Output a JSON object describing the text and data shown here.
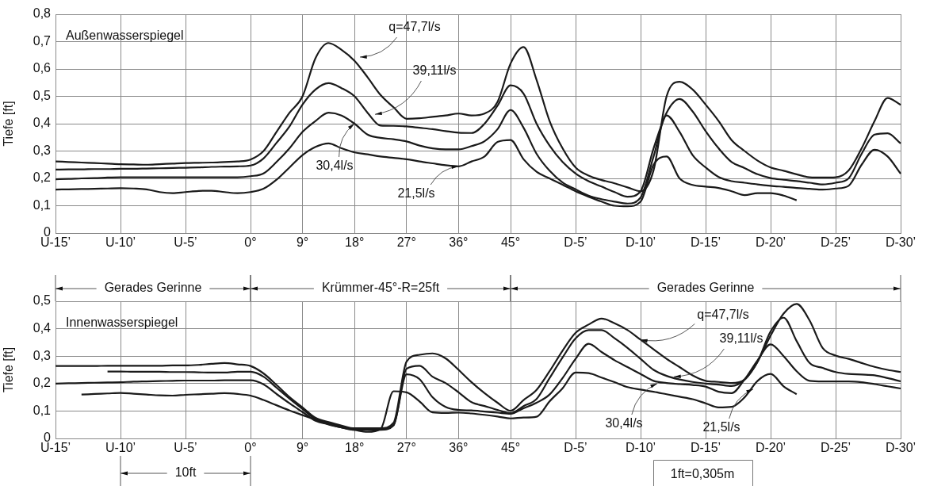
{
  "chart_data": [
    {
      "type": "line",
      "ylabel": "Tiefe [ft]",
      "grid": true,
      "marker": "none",
      "categories": [
        "U-15’",
        null,
        null,
        null,
        null,
        "U-10’",
        null,
        null,
        null,
        null,
        "U-5’",
        null,
        null,
        null,
        null,
        "0°",
        null,
        null,
        null,
        "9°",
        null,
        null,
        null,
        "18°",
        null,
        null,
        null,
        "27°",
        null,
        null,
        null,
        "36°",
        null,
        null,
        null,
        "45°",
        null,
        null,
        null,
        null,
        "D-5’",
        null,
        null,
        null,
        null,
        "D-10’",
        null,
        null,
        null,
        null,
        "D-15’",
        null,
        null,
        null,
        null,
        "D-20’",
        null,
        null,
        null,
        null,
        "D-25’",
        null,
        null,
        null,
        null,
        "D-30’"
      ],
      "ylim": [
        0,
        0.8
      ],
      "yticks": [
        0,
        {
          "value": 0.1,
          "label": "0,1"
        },
        {
          "value": 0.2,
          "label": "0,2"
        },
        {
          "value": 0.3,
          "label": "0,3"
        },
        {
          "value": 0.4,
          "label": "0,4"
        },
        {
          "value": 0.5,
          "label": "0,5"
        },
        {
          "value": 0.6,
          "label": "0,6"
        },
        {
          "value": 0.7,
          "label": "0,7"
        },
        {
          "value": 0.8,
          "label": "0,8"
        }
      ],
      "series": [
        {
          "color": "#1a1a1a",
          "values": [
            0.262,
            0.26,
            0.258,
            0.256,
            0.254,
            0.252,
            0.251,
            0.25,
            0.252,
            0.254,
            0.256,
            0.257,
            0.258,
            0.26,
            0.262,
            0.269,
            0.3,
            0.37,
            0.44,
            0.5,
            0.64,
            0.695,
            0.67,
            0.63,
            0.57,
            0.505,
            0.46,
            0.418,
            0.42,
            0.425,
            0.43,
            0.437,
            0.43,
            0.437,
            0.48,
            0.62,
            0.68,
            0.56,
            0.41,
            0.31,
            0.24,
            0.21,
            0.194,
            0.182,
            0.167,
            0.153,
            0.23,
            0.5,
            0.553,
            0.525,
            0.47,
            0.41,
            0.34,
            0.3,
            0.265,
            0.24,
            0.228,
            0.215,
            0.204,
            0.203,
            0.204,
            0.229,
            0.31,
            0.41,
            0.494,
            0.469
          ]
        },
        {
          "color": "#1a1a1a",
          "values": [
            0.232,
            0.233,
            0.233,
            0.234,
            0.234,
            0.235,
            0.235,
            0.236,
            0.237,
            0.238,
            0.239,
            0.24,
            0.242,
            0.243,
            0.244,
            0.247,
            0.273,
            0.33,
            0.39,
            0.47,
            0.525,
            0.548,
            0.53,
            0.5,
            0.44,
            0.393,
            0.392,
            0.39,
            0.385,
            0.38,
            0.373,
            0.367,
            0.366,
            0.4,
            0.466,
            0.54,
            0.51,
            0.4,
            0.32,
            0.26,
            0.218,
            0.19,
            0.17,
            0.15,
            0.133,
            0.153,
            0.31,
            0.44,
            0.49,
            0.445,
            0.373,
            0.31,
            0.26,
            0.238,
            0.215,
            0.201,
            0.195,
            0.19,
            0.184,
            0.178,
            0.184,
            0.2,
            0.29,
            0.36,
            0.365,
            0.328
          ]
        },
        {
          "color": "#1a1a1a",
          "values": [
            0.197,
            0.198,
            0.2,
            0.201,
            0.203,
            0.204,
            0.204,
            0.204,
            0.204,
            0.204,
            0.204,
            0.204,
            0.204,
            0.204,
            0.204,
            0.208,
            0.218,
            0.26,
            0.31,
            0.37,
            0.41,
            0.44,
            0.43,
            0.4,
            0.36,
            0.348,
            0.343,
            0.335,
            0.32,
            0.31,
            0.306,
            0.306,
            0.318,
            0.336,
            0.38,
            0.45,
            0.385,
            0.29,
            0.228,
            0.185,
            0.16,
            0.137,
            0.124,
            0.115,
            0.108,
            0.13,
            0.28,
            0.43,
            0.37,
            0.285,
            0.24,
            0.205,
            0.19,
            0.184,
            0.178,
            0.173,
            0.169,
            0.165,
            0.162,
            0.159,
            0.163,
            0.173,
            0.25,
            0.305,
            0.28,
            0.217
          ]
        },
        {
          "color": "#1a1a1a",
          "values": [
            0.159,
            0.16,
            0.161,
            0.162,
            0.163,
            0.164,
            0.163,
            0.16,
            0.15,
            0.146,
            0.15,
            0.154,
            0.155,
            0.15,
            0.146,
            0.15,
            0.162,
            0.195,
            0.24,
            0.285,
            0.315,
            0.328,
            0.31,
            0.295,
            0.288,
            0.28,
            0.275,
            0.27,
            0.262,
            0.255,
            0.248,
            0.244,
            0.262,
            0.28,
            0.333,
            0.34,
            0.27,
            0.224,
            0.2,
            0.177,
            0.153,
            0.133,
            0.115,
            0.1,
            0.098,
            0.115,
            0.25,
            0.28,
            0.2,
            0.176,
            0.17,
            0.165,
            0.153,
            0.139,
            0.146,
            0.146,
            0.137,
            0.12,
            null,
            null,
            null,
            null,
            null,
            null,
            null,
            null
          ]
        }
      ],
      "annotations": [
        "Außenwasserspiegel",
        "q=47,7l/s",
        {
          "text": "39,11l/s",
          "y": 0.434
        },
        {
          "text": "30,4l/s",
          "x": "18°",
          "y": 0.4
        },
        {
          "text": "21,5l/s",
          "x": "36°",
          "y": 0.244
        }
      ]
    },
    {
      "type": "line",
      "ylabel": "Tiefe [ft]",
      "grid": true,
      "marker": "none",
      "categories": [
        "U-15’",
        null,
        null,
        null,
        null,
        "U-10’",
        null,
        null,
        null,
        null,
        "U-5’",
        null,
        null,
        null,
        null,
        "0°",
        null,
        null,
        null,
        "9°",
        null,
        null,
        null,
        "18°",
        null,
        null,
        null,
        "27°",
        null,
        null,
        null,
        "36°",
        null,
        null,
        null,
        "45°",
        null,
        null,
        null,
        null,
        "D-5’",
        null,
        null,
        null,
        null,
        "D-10’",
        null,
        null,
        null,
        null,
        "D-15’",
        null,
        null,
        null,
        null,
        "D-20’",
        null,
        null,
        null,
        null,
        "D-25’",
        null,
        null,
        null,
        null,
        "D-30’"
      ],
      "ylim": [
        0,
        0.5
      ],
      "yticks": [
        0,
        {
          "value": 0.1,
          "label": "0,1"
        },
        {
          "value": 0.2,
          "label": "0,2"
        },
        {
          "value": 0.3,
          "label": "0,3"
        },
        {
          "value": 0.4,
          "label": "0,4"
        },
        {
          "value": 0.5,
          "label": "0,5"
        }
      ],
      "series": [
        {
          "color": "#1a1a1a",
          "values": [
            0.264,
            0.264,
            0.264,
            0.264,
            0.265,
            0.265,
            0.265,
            0.265,
            0.265,
            0.266,
            0.266,
            0.268,
            0.272,
            0.275,
            0.27,
            0.264,
            0.237,
            0.195,
            0.151,
            0.113,
            0.075,
            0.06,
            0.047,
            0.037,
            0.037,
            0.037,
            0.057,
            0.28,
            0.305,
            0.31,
            0.292,
            0.25,
            0.205,
            0.165,
            0.13,
            0.101,
            0.14,
            0.177,
            0.245,
            0.32,
            0.385,
            0.415,
            0.437,
            0.42,
            0.395,
            0.36,
            0.325,
            0.29,
            0.26,
            0.23,
            0.21,
            0.206,
            0.202,
            0.214,
            0.28,
            0.375,
            0.455,
            0.49,
            0.43,
            0.33,
            0.302,
            0.29,
            0.275,
            0.261,
            0.25,
            0.242
          ]
        },
        {
          "color": "#1a1a1a",
          "values": [
            null,
            null,
            null,
            null,
            0.244,
            0.244,
            0.243,
            0.243,
            0.243,
            0.242,
            0.242,
            0.241,
            0.24,
            0.24,
            0.243,
            0.243,
            0.225,
            0.185,
            0.145,
            0.107,
            0.07,
            0.057,
            0.044,
            0.033,
            0.033,
            0.033,
            0.048,
            0.254,
            0.265,
            0.225,
            0.202,
            0.168,
            0.132,
            0.118,
            0.104,
            0.092,
            0.118,
            0.144,
            0.22,
            0.295,
            0.365,
            0.395,
            0.395,
            0.365,
            0.33,
            0.29,
            0.25,
            0.228,
            0.215,
            0.206,
            0.2,
            0.196,
            0.191,
            0.215,
            0.28,
            0.39,
            0.44,
            0.355,
            0.275,
            0.257,
            0.242,
            0.235,
            0.233,
            0.23,
            0.22,
            0.208
          ]
        },
        {
          "color": "#1a1a1a",
          "values": [
            0.2,
            0.201,
            0.202,
            0.203,
            0.204,
            0.205,
            0.207,
            0.208,
            0.209,
            0.21,
            0.211,
            0.211,
            0.211,
            0.212,
            0.212,
            0.212,
            0.197,
            0.162,
            0.128,
            0.096,
            0.064,
            0.052,
            0.04,
            0.031,
            0.031,
            0.031,
            0.048,
            0.234,
            0.216,
            0.15,
            0.115,
            0.104,
            0.102,
            0.098,
            0.094,
            0.09,
            0.11,
            0.13,
            0.16,
            0.22,
            0.29,
            0.345,
            0.315,
            0.285,
            0.26,
            0.235,
            0.21,
            0.202,
            0.198,
            0.195,
            0.189,
            0.17,
            0.165,
            0.215,
            0.285,
            0.343,
            0.3,
            0.245,
            0.21,
            0.208,
            0.208,
            0.208,
            0.205,
            0.198,
            0.19,
            0.182
          ]
        },
        {
          "color": "#1a1a1a",
          "values": [
            null,
            null,
            0.16,
            0.162,
            0.164,
            0.166,
            0.163,
            0.16,
            0.157,
            0.156,
            0.159,
            0.161,
            0.163,
            0.165,
            0.162,
            0.156,
            0.14,
            0.121,
            0.102,
            0.085,
            0.068,
            0.051,
            0.04,
            0.031,
            0.024,
            0.034,
            0.172,
            0.168,
            0.135,
            0.095,
            0.093,
            0.094,
            0.091,
            0.086,
            0.08,
            0.073,
            0.076,
            0.079,
            0.135,
            0.183,
            0.24,
            0.238,
            0.222,
            0.205,
            0.187,
            0.178,
            0.17,
            0.161,
            0.152,
            0.143,
            0.128,
            0.113,
            0.115,
            0.15,
            0.21,
            0.235,
            0.19,
            0.161,
            null,
            null,
            null,
            null,
            null,
            null,
            null,
            null
          ]
        }
      ],
      "annotations": [
        "Innenwasserspiegel",
        "Gerades Gerinne",
        "Krümmer-45°-R=25ft",
        "Gerades Gerinne",
        "10ft",
        {
          "text": "q=47,7l/s",
          "x": "D-10’",
          "y": 0.36
        },
        {
          "text": "39,11l/s",
          "y": 0.225
        },
        {
          "text": "30,4l/s",
          "y": 0.2
        },
        {
          "text": "21,5l/s",
          "y": 0.18
        },
        "1ft=0,305m"
      ]
    }
  ]
}
